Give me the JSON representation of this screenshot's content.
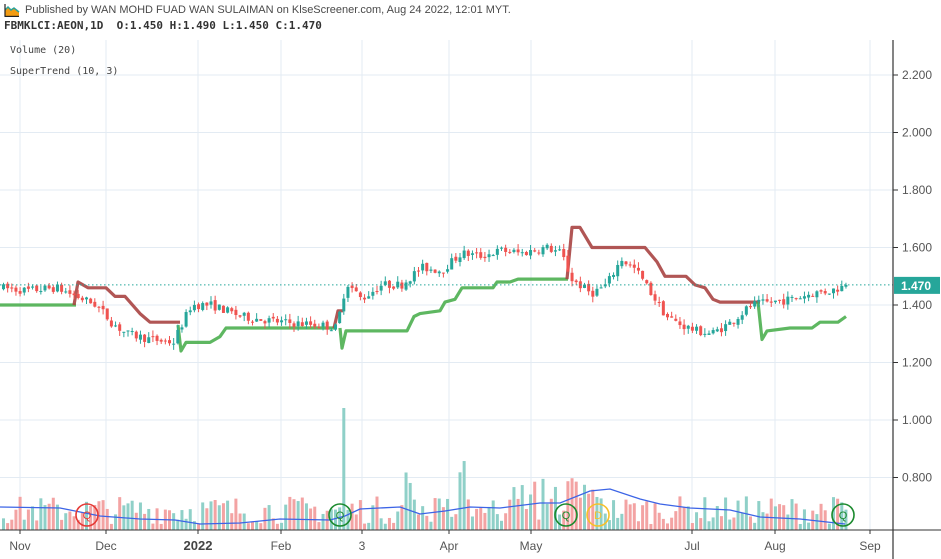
{
  "header": {
    "published": "Published by WAN MOHD FUAD WAN SULAIMAN on KlseScreener.com, Aug 24 2022, 12:01 MYT.",
    "symbol": "FBMKLCI:AEON,1D",
    "ohlc": "O:1.450 H:1.490 L:1.450 C:1.470",
    "logo_icon": "area-chart-logo-icon"
  },
  "legend": {
    "volume": "Volume (20)",
    "supertrend": "SuperTrend (10, 3)"
  },
  "price_axis": {
    "ticks": [
      "2.200",
      "2.000",
      "1.800",
      "1.600",
      "1.400",
      "1.200",
      "1.000",
      "0.800"
    ],
    "last_price": "1.470",
    "last_price_color": "#26a69a"
  },
  "time_axis": {
    "ticks": [
      "Nov",
      "Dec",
      "2022",
      "Feb",
      "3",
      "Apr",
      "May",
      "Jul",
      "Aug",
      "Sep"
    ]
  },
  "markers": [
    {
      "label": "Q",
      "color": "#e53935"
    },
    {
      "label": "Q",
      "color": "#1b8a2e"
    },
    {
      "label": "Q",
      "color": "#1b8a2e"
    },
    {
      "label": "D",
      "color": "#f6c02a"
    },
    {
      "label": "Q",
      "color": "#1b8a2e"
    }
  ],
  "colors": {
    "up": "#26a69a",
    "down": "#ef5350",
    "up_volume": "#8fd0c8",
    "down_volume": "#f3a3a3",
    "supertrend_up": "#4caf50",
    "supertrend_down": "#a94442",
    "volume_ma": "#3c64e6",
    "grid": "#e3ebf3",
    "axis": "#333333"
  },
  "chart_data": {
    "type": "candlestick",
    "title": "FBMKLCI:AEON,1D",
    "indicators": [
      "Volume (20)",
      "SuperTrend (10, 3)"
    ],
    "x_range": [
      "Oct 2021",
      "Aug 24 2022"
    ],
    "ylim": [
      0.65,
      2.3
    ],
    "last": {
      "open": 1.45,
      "high": 1.49,
      "low": 1.45,
      "close": 1.47
    },
    "approx_closes_by_month": {
      "Oct 2021": 1.46,
      "Nov 2021": 1.43,
      "Dec 2021": 1.28,
      "Jan 2022": 1.38,
      "Feb 2022": 1.33,
      "Mar 2022": 1.48,
      "Apr 2022": 1.58,
      "May 2022": 1.58,
      "Jun 2022": 1.42,
      "Jul 2022": 1.33,
      "Aug 2022": 1.47
    },
    "supertrend_segments": [
      {
        "trend": "up",
        "from": "Oct 2021",
        "to": "late Nov 2021",
        "level": 1.4
      },
      {
        "trend": "down",
        "from": "late Nov 2021",
        "to": "late Dec 2021",
        "start": 1.48,
        "end": 1.33
      },
      {
        "trend": "up",
        "from": "late Dec 2021",
        "to": "late Feb 2022",
        "start": 1.24,
        "end": 1.32
      },
      {
        "trend": "up",
        "from": "late Feb 2022",
        "to": "mid May 2022",
        "start": 1.25,
        "end": 1.5
      },
      {
        "trend": "down",
        "from": "mid May 2022",
        "to": "mid Jul 2022",
        "start": 1.67,
        "end": 1.41
      },
      {
        "trend": "up",
        "from": "mid Jul 2022",
        "to": "Aug 24 2022",
        "start": 1.28,
        "end": 1.36
      }
    ],
    "volume_spikes": [
      {
        "date": "late Feb 2022",
        "approx_height_price_scale": 1.04
      }
    ],
    "grid": true
  }
}
